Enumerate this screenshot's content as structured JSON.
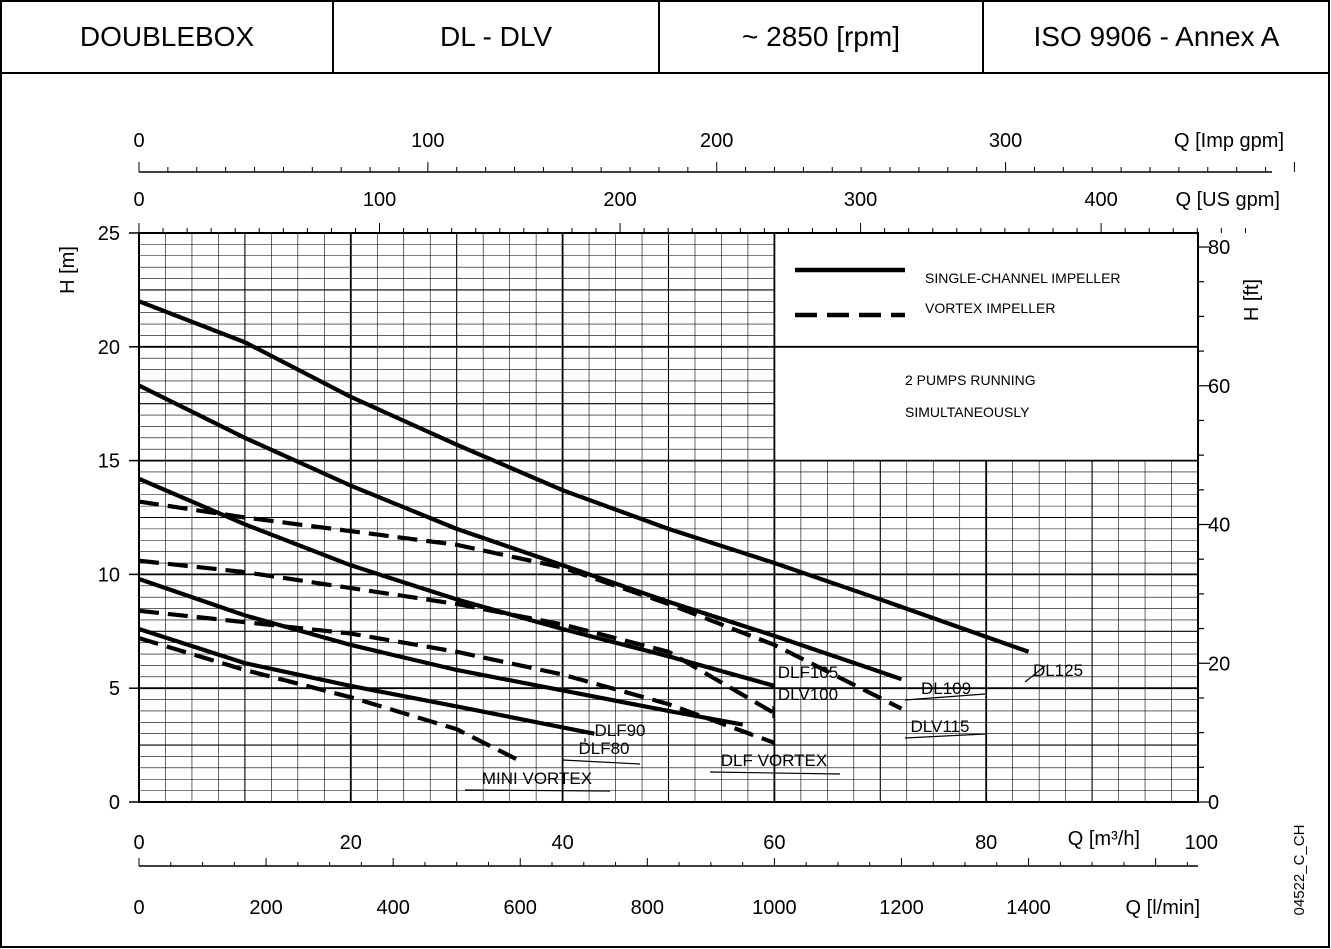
{
  "header": {
    "model": "DOUBLEBOX",
    "series": "DL - DLV",
    "speed": "~ 2850 [rpm]",
    "standard": "ISO 9906 - Annex A"
  },
  "code": "04522_C_CH",
  "chart_data": {
    "type": "line",
    "xlabel": "Q [m³/h]",
    "ylabel": "H [m]",
    "xlim": [
      0,
      100
    ],
    "ylim": [
      0,
      25
    ],
    "x_ticks": [
      "0",
      "20",
      "40",
      "60",
      "80",
      "100"
    ],
    "y_ticks": [
      "0",
      "5",
      "10",
      "15",
      "20",
      "25"
    ],
    "grid": true,
    "secondary_axes": {
      "right": {
        "label": "H [ft]",
        "ticks": [
          "0",
          "20",
          "40",
          "60",
          "80"
        ]
      },
      "bottom": {
        "label": "Q [l/min]",
        "ticks": [
          "0",
          "200",
          "400",
          "600",
          "800",
          "1000",
          "1200",
          "1400"
        ]
      },
      "top_us": {
        "label": "Q [US gpm]",
        "ticks": [
          "0",
          "100",
          "200",
          "300",
          "400"
        ]
      },
      "top_imp": {
        "label": "Q [Imp gpm]",
        "ticks": [
          "0",
          "100",
          "200",
          "300"
        ]
      }
    },
    "legend": {
      "placement": "top-right",
      "entries": [
        {
          "label": "SINGLE-CHANNEL IMPELLER",
          "style": "solid"
        },
        {
          "label": "VORTEX IMPELLER",
          "style": "dashed"
        }
      ],
      "note_line1": "2 PUMPS RUNNING",
      "note_line2": "SIMULTANEOUSLY"
    },
    "series": [
      {
        "name": "DL125",
        "style": "solid",
        "x": [
          0,
          10,
          20,
          30,
          40,
          50,
          60,
          70,
          84
        ],
        "y": [
          22,
          20.2,
          17.8,
          15.7,
          13.7,
          12.0,
          10.5,
          8.9,
          6.6
        ]
      },
      {
        "name": "DL109",
        "style": "solid",
        "x": [
          0,
          10,
          20,
          30,
          40,
          50,
          60,
          72
        ],
        "y": [
          18.3,
          16.0,
          13.9,
          12.0,
          10.4,
          8.8,
          7.3,
          5.4
        ]
      },
      {
        "name": "DLF105",
        "style": "solid",
        "x": [
          0,
          10,
          20,
          30,
          40,
          50,
          60
        ],
        "y": [
          14.2,
          12.2,
          10.4,
          8.9,
          7.6,
          6.4,
          5.1
        ]
      },
      {
        "name": "DLV115",
        "style": "dashed",
        "x": [
          0,
          10,
          20,
          30,
          40,
          50,
          60,
          72
        ],
        "y": [
          13.2,
          12.5,
          11.9,
          11.3,
          10.3,
          8.7,
          6.9,
          4.1
        ]
      },
      {
        "name": "DLV100",
        "style": "dashed",
        "x": [
          0,
          10,
          20,
          30,
          40,
          50,
          60
        ],
        "y": [
          10.6,
          10.1,
          9.4,
          8.7,
          7.8,
          6.6,
          3.9
        ]
      },
      {
        "name": "DLF90",
        "style": "solid",
        "x": [
          0,
          10,
          20,
          30,
          40,
          50,
          57
        ],
        "y": [
          9.8,
          8.2,
          6.9,
          5.8,
          4.9,
          4.0,
          3.4
        ]
      },
      {
        "name": "DLF VORTEX",
        "style": "dashed",
        "x": [
          0,
          10,
          20,
          30,
          40,
          50,
          60
        ],
        "y": [
          8.4,
          7.9,
          7.4,
          6.6,
          5.6,
          4.3,
          2.6
        ]
      },
      {
        "name": "DLF80",
        "style": "solid",
        "x": [
          0,
          10,
          20,
          30,
          43
        ],
        "y": [
          7.6,
          6.1,
          5.1,
          4.2,
          3.0
        ]
      },
      {
        "name": "MINI VORTEX",
        "style": "dashed",
        "x": [
          0,
          10,
          20,
          30,
          36
        ],
        "y": [
          7.2,
          5.8,
          4.6,
          3.2,
          1.8
        ]
      }
    ]
  }
}
